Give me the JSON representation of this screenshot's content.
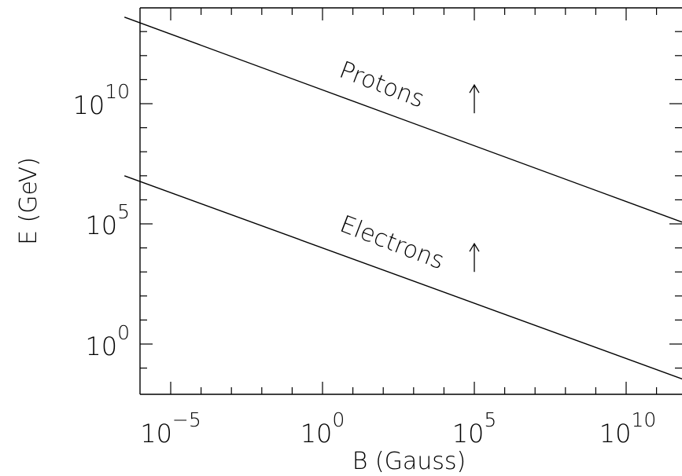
{
  "chart_data": {
    "type": "line",
    "xlabel": "B (Gauss)",
    "ylabel": "E (GeV)",
    "xscale": "log",
    "yscale": "log",
    "xlim": [
      3e-07,
      1000000000000.0
    ],
    "ylim": [
      0.03,
      100000000000000.0
    ],
    "grid": false,
    "x_ticks": [
      {
        "base": "10",
        "exp": "−5",
        "value": 1e-05
      },
      {
        "base": "10",
        "exp": "0",
        "value": 1
      },
      {
        "base": "10",
        "exp": "5",
        "value": 100000.0
      },
      {
        "base": "10",
        "exp": "10",
        "value": 10000000000.0
      }
    ],
    "y_ticks": [
      {
        "base": "10",
        "exp": "0",
        "value": 1
      },
      {
        "base": "10",
        "exp": "5",
        "value": 100000.0
      },
      {
        "base": "10",
        "exp": "10",
        "value": 10000000000.0
      }
    ],
    "series": [
      {
        "name": "Protons",
        "x": [
          3e-07,
          1000000000000.0
        ],
        "y": [
          40000000000000.0,
          100000.0
        ]
      },
      {
        "name": "Electrons",
        "x": [
          3e-07,
          1000000000000.0
        ],
        "y": [
          10000000.0,
          0.03
        ]
      }
    ],
    "annotations": [
      {
        "text": "Protons",
        "arrow_at_x": 100000.0,
        "arrow_from_y": 4000000000.0,
        "arrow_to_y": 60000000000.0
      },
      {
        "text": "Electrons",
        "arrow_at_x": 100000.0,
        "arrow_from_y": 1000.0,
        "arrow_to_y": 15000.0
      }
    ]
  }
}
